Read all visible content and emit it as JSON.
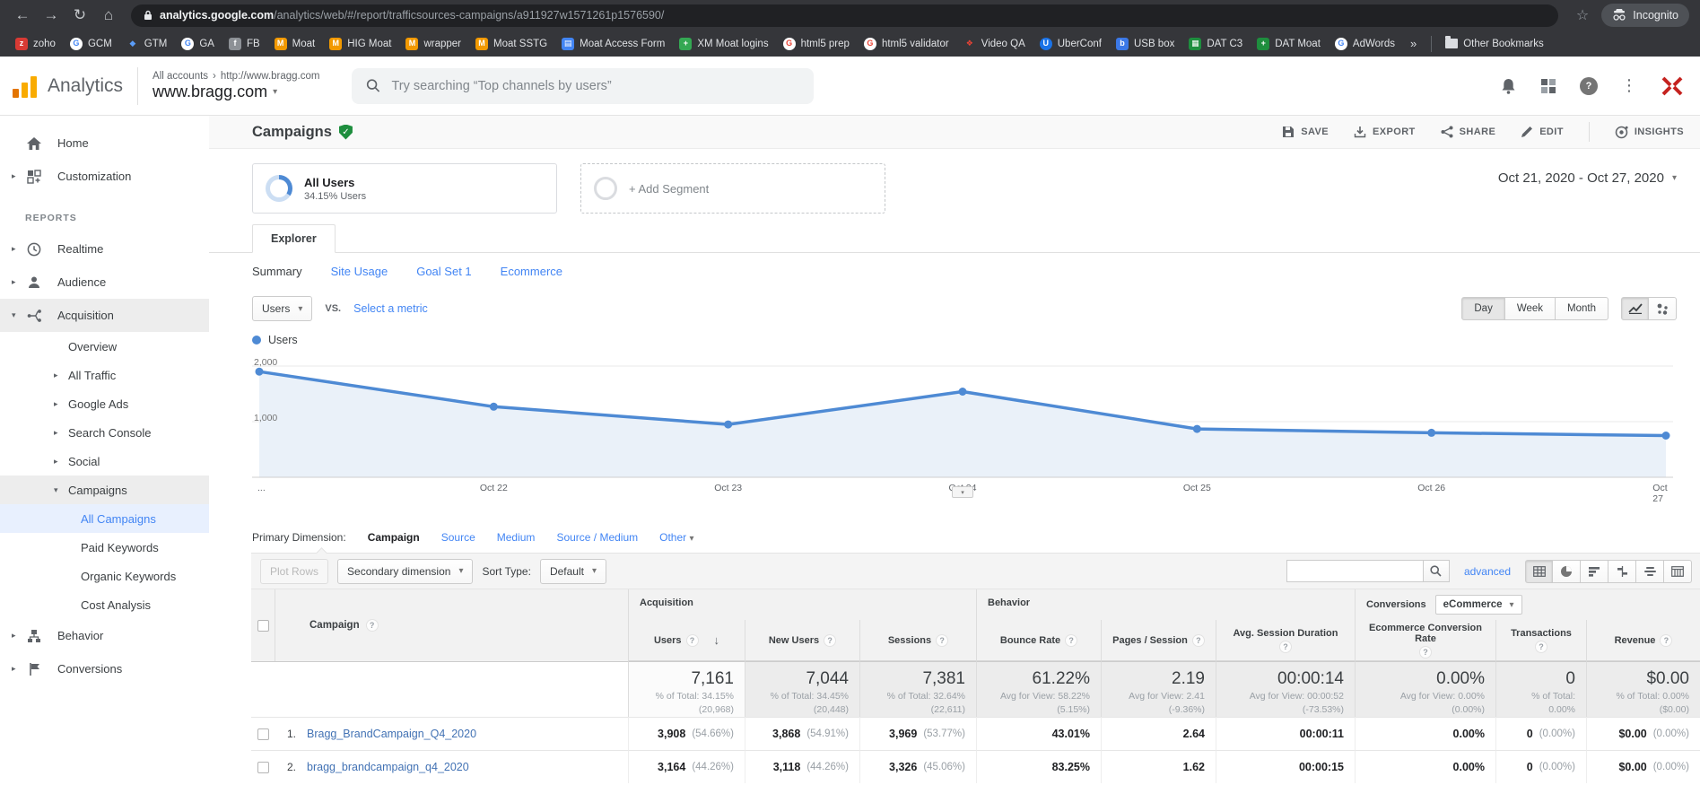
{
  "browser": {
    "url_domain": "analytics.google.com",
    "url_path": "/analytics/web/#/report/trafficsources-campaigns/a911927w1571261p1576590/",
    "incognito_label": "Incognito",
    "other_bookmarks_label": "Other Bookmarks",
    "overflow_glyph": "»",
    "bookmarks": [
      {
        "label": "zoho",
        "glyph": "z",
        "bg": "#d83a34",
        "fg": "#fff"
      },
      {
        "label": "GCM",
        "glyph": "G",
        "bg": "#fff",
        "fg": "#4285f4",
        "round": true
      },
      {
        "label": "GTM",
        "glyph": "◆",
        "bg": "transparent",
        "fg": "#5a9cf8"
      },
      {
        "label": "GA",
        "glyph": "G",
        "bg": "#fff",
        "fg": "#4285f4",
        "round": true
      },
      {
        "label": "FB",
        "glyph": "f",
        "bg": "#8d9196",
        "fg": "#fff"
      },
      {
        "label": "Moat",
        "glyph": "M",
        "bg": "#f29900",
        "fg": "#fff"
      },
      {
        "label": "HIG Moat",
        "glyph": "M",
        "bg": "#f29900",
        "fg": "#fff"
      },
      {
        "label": "wrapper",
        "glyph": "M",
        "bg": "#f29900",
        "fg": "#fff"
      },
      {
        "label": "Moat SSTG",
        "glyph": "M",
        "bg": "#f29900",
        "fg": "#fff"
      },
      {
        "label": "Moat Access Form",
        "glyph": "▤",
        "bg": "#4285f4",
        "fg": "#fff"
      },
      {
        "label": "XM Moat logins",
        "glyph": "+",
        "bg": "#34a853",
        "fg": "#fff"
      },
      {
        "label": "html5 prep",
        "glyph": "G",
        "bg": "#fff",
        "fg": "#ea4335",
        "round": true
      },
      {
        "label": "html5 validator",
        "glyph": "G",
        "bg": "#fff",
        "fg": "#ea4335",
        "round": true
      },
      {
        "label": "Video QA",
        "glyph": "❖",
        "bg": "transparent",
        "fg": "#ea4335"
      },
      {
        "label": "UberConf",
        "glyph": "U",
        "bg": "#1a73e8",
        "fg": "#fff",
        "round": true
      },
      {
        "label": "USB box",
        "glyph": "b",
        "bg": "#3b78e7",
        "fg": "#fff"
      },
      {
        "label": "DAT C3",
        "glyph": "▦",
        "bg": "#1e8e3e",
        "fg": "#fff"
      },
      {
        "label": "DAT Moat",
        "glyph": "+",
        "bg": "#1e8e3e",
        "fg": "#fff"
      },
      {
        "label": "AdWords",
        "glyph": "G",
        "bg": "#fff",
        "fg": "#4285f4",
        "round": true
      }
    ]
  },
  "app_header": {
    "product": "Analytics",
    "breadcrumb_root": "All accounts",
    "breadcrumb_sep": "›",
    "breadcrumb_site": "http://www.bragg.com",
    "property": "www.bragg.com",
    "search_placeholder": "Try searching “Top channels by users”"
  },
  "sidebar": {
    "items": [
      {
        "label": "Home",
        "icon": "home"
      },
      {
        "label": "Customization",
        "icon": "customization",
        "chevron": "right"
      },
      {
        "heading": "REPORTS"
      },
      {
        "label": "Realtime",
        "icon": "clock",
        "chevron": "right"
      },
      {
        "label": "Audience",
        "icon": "person",
        "chevron": "right"
      },
      {
        "label": "Acquisition",
        "icon": "acquisition",
        "chevron": "down",
        "active": true
      },
      {
        "label": "Overview",
        "level": 2
      },
      {
        "label": "All Traffic",
        "level": 2,
        "chevron": "right"
      },
      {
        "label": "Google Ads",
        "level": 2,
        "chevron": "right"
      },
      {
        "label": "Search Console",
        "level": 2,
        "chevron": "right"
      },
      {
        "label": "Social",
        "level": 2,
        "chevron": "right"
      },
      {
        "label": "Campaigns",
        "level": 2,
        "chevron": "down",
        "active": true
      },
      {
        "label": "All Campaigns",
        "level": 3,
        "selected": true
      },
      {
        "label": "Paid Keywords",
        "level": 3
      },
      {
        "label": "Organic Keywords",
        "level": 3
      },
      {
        "label": "Cost Analysis",
        "level": 3
      },
      {
        "label": "Behavior",
        "icon": "behavior",
        "chevron": "right"
      },
      {
        "label": "Conversions",
        "icon": "flag",
        "chevron": "right"
      }
    ]
  },
  "report": {
    "title": "Campaigns",
    "actions": {
      "save": "SAVE",
      "export": "EXPORT",
      "share": "SHARE",
      "edit": "EDIT",
      "insights": "INSIGHTS"
    },
    "date_range": "Oct 21, 2020 - Oct 27, 2020",
    "segments": {
      "all_users": "All Users",
      "all_users_sub": "34.15% Users",
      "add_segment": "+ Add Segment"
    },
    "explorer_tab": "Explorer",
    "subtabs": {
      "summary": "Summary",
      "site_usage": "Site Usage",
      "goal_set": "Goal Set 1",
      "ecommerce": "Ecommerce"
    },
    "metric_picker": {
      "metric": "Users",
      "vs": "vs.",
      "select_link": "Select a metric"
    },
    "granularity": {
      "day": "Day",
      "week": "Week",
      "month": "Month"
    }
  },
  "chart_data": {
    "type": "line",
    "legend": "Users",
    "x": [
      "Oct 21",
      "Oct 22",
      "Oct 23",
      "Oct 24",
      "Oct 25",
      "Oct 26",
      "Oct 27"
    ],
    "series": [
      {
        "name": "Users",
        "values": [
          1900,
          1270,
          950,
          1540,
          870,
          800,
          750
        ]
      }
    ],
    "xtick_labels": [
      "...",
      "Oct 22",
      "Oct 23",
      "Oct 24",
      "Oct 25",
      "Oct 26",
      "Oct 27"
    ],
    "yticks": [
      "2,000",
      "1,000"
    ],
    "ylim": [
      0,
      2000
    ],
    "grid": true,
    "legend_position": "top-left",
    "line_color": "#4e8ad4",
    "fill_color": "#eaf1f9"
  },
  "table": {
    "primary": {
      "label": "Primary Dimension:",
      "campaign": "Campaign",
      "source": "Source",
      "medium": "Medium",
      "source_medium": "Source / Medium",
      "other": "Other"
    },
    "controls": {
      "plot_rows": "Plot Rows",
      "secondary_dimension": "Secondary dimension",
      "sort_type_label": "Sort Type:",
      "sort_type": "Default",
      "advanced": "advanced"
    },
    "groups": {
      "acquisition": "Acquisition",
      "behavior": "Behavior",
      "conversions": "Conversions",
      "conversions_selector": "eCommerce"
    },
    "columns": [
      "Campaign",
      "Users",
      "New Users",
      "Sessions",
      "Bounce Rate",
      "Pages / Session",
      "Avg. Session Duration",
      "Ecommerce Conversion Rate",
      "Transactions",
      "Revenue"
    ],
    "totals": {
      "users": {
        "v": "7,161",
        "s1": "% of Total: 34.15%",
        "s2": "(20,968)"
      },
      "new_users": {
        "v": "7,044",
        "s1": "% of Total: 34.45%",
        "s2": "(20,448)"
      },
      "sessions": {
        "v": "7,381",
        "s1": "% of Total: 32.64%",
        "s2": "(22,611)"
      },
      "bounce": {
        "v": "61.22%",
        "s1": "Avg for View: 58.22%",
        "s2": "(5.15%)"
      },
      "pages": {
        "v": "2.19",
        "s1": "Avg for View: 2.41",
        "s2": "(-9.36%)"
      },
      "duration": {
        "v": "00:00:14",
        "s1": "Avg for View: 00:00:52",
        "s2": "(-73.53%)"
      },
      "ecr": {
        "v": "0.00%",
        "s1": "Avg for View: 0.00% (0.00%)",
        "s2": ""
      },
      "transactions": {
        "v": "0",
        "s1": "% of Total: 0.00%",
        "s2": "(0)"
      },
      "revenue": {
        "v": "$0.00",
        "s1": "% of Total: 0.00%",
        "s2": "($0.00)"
      }
    },
    "rows": [
      {
        "index": "1.",
        "name": "Bragg_BrandCampaign_Q4_2020",
        "users": "3,908",
        "users_pct": "(54.66%)",
        "new_users": "3,868",
        "new_users_pct": "(54.91%)",
        "sessions": "3,969",
        "sessions_pct": "(53.77%)",
        "bounce": "43.01%",
        "pages": "2.64",
        "duration": "00:00:11",
        "ecr": "0.00%",
        "transactions": "0",
        "transactions_pct": "(0.00%)",
        "revenue": "$0.00",
        "revenue_pct": "(0.00%)"
      },
      {
        "index": "2.",
        "name": "bragg_brandcampaign_q4_2020",
        "users": "3,164",
        "users_pct": "(44.26%)",
        "new_users": "3,118",
        "new_users_pct": "(44.26%)",
        "sessions": "3,326",
        "sessions_pct": "(45.06%)",
        "bounce": "83.25%",
        "pages": "1.62",
        "duration": "00:00:15",
        "ecr": "0.00%",
        "transactions": "0",
        "transactions_pct": "(0.00%)",
        "revenue": "$0.00",
        "revenue_pct": "(0.00%)"
      }
    ]
  }
}
